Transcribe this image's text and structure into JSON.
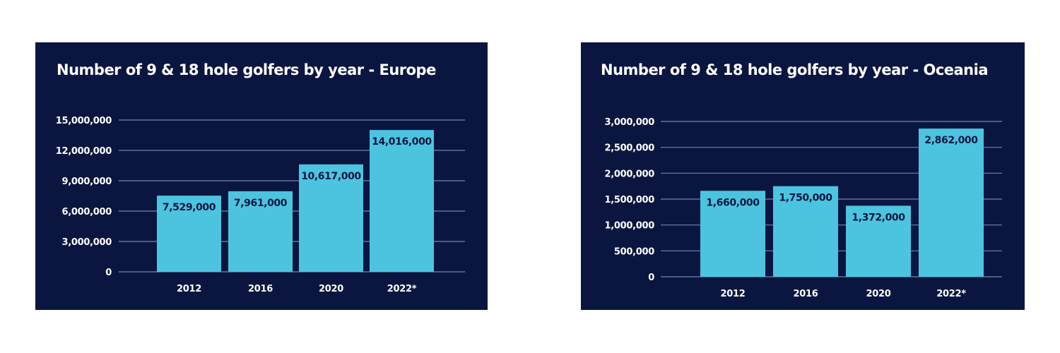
{
  "colors": {
    "panel": "#0b1640",
    "bar": "#4cc4e0",
    "grid": "#6f82b0",
    "text": "#ffffff",
    "label": "#0b1640"
  },
  "chart_data": [
    {
      "type": "bar",
      "title": "Number of 9 & 18 hole golfers by year - Europe",
      "categories": [
        "2012",
        "2016",
        "2020",
        "2022*"
      ],
      "values": [
        7529000,
        7961000,
        10617000,
        14016000
      ],
      "data_labels": [
        "7,529,000",
        "7,961,000",
        "10,617,000",
        "14,016,000"
      ],
      "yticks": [
        0,
        3000000,
        6000000,
        9000000,
        12000000,
        15000000
      ],
      "ytick_labels": [
        "0",
        "3,000,000",
        "6,000,000",
        "9,000,000",
        "12,000,000",
        "15,000,000"
      ],
      "ylim": [
        0,
        15000000
      ],
      "xlabel": "",
      "ylabel": "",
      "grid": true
    },
    {
      "type": "bar",
      "title": "Number of 9 & 18 hole golfers by year - Oceania",
      "categories": [
        "2012",
        "2016",
        "2020",
        "2022*"
      ],
      "values": [
        1660000,
        1750000,
        1372000,
        2862000
      ],
      "data_labels": [
        "1,660,000",
        "1,750,000",
        "1,372,000",
        "2,862,000"
      ],
      "yticks": [
        0,
        500000,
        1000000,
        1500000,
        2000000,
        2500000,
        3000000
      ],
      "ytick_labels": [
        "0",
        "500,000",
        "1,000,000",
        "1,500,000",
        "2,000,000",
        "2,500,000",
        "3,000,000"
      ],
      "ylim": [
        0,
        3000000
      ],
      "xlabel": "",
      "ylabel": "",
      "grid": true
    }
  ]
}
